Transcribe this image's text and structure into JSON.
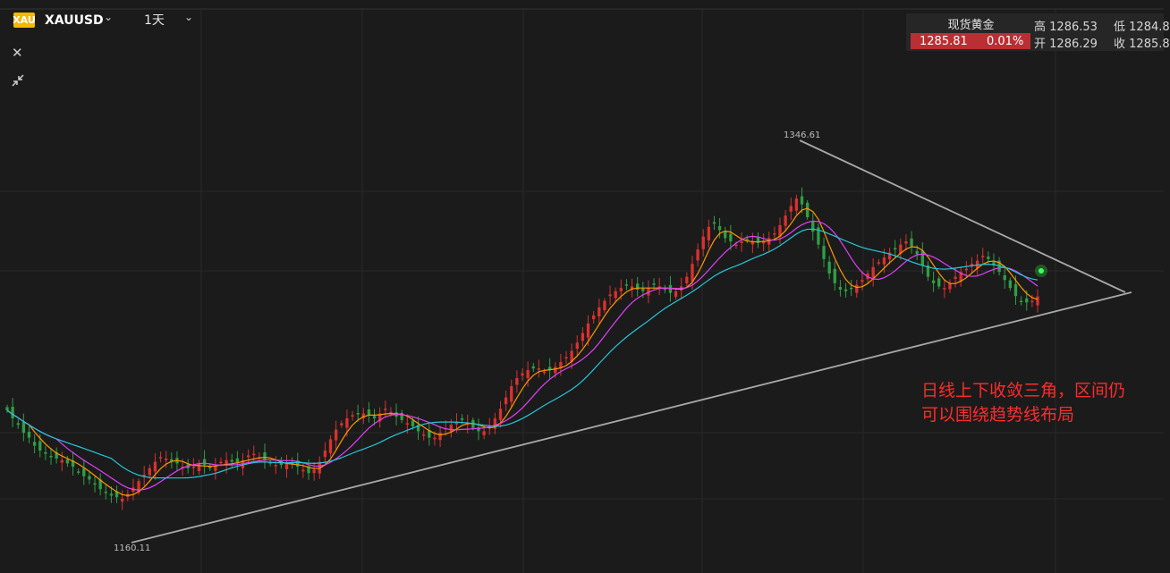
{
  "header": {
    "badge": "XAU",
    "symbol": "XAUUSD",
    "symbol_caret": "⌄",
    "period": "1天",
    "period_caret": "⌄",
    "close_icon": "✕"
  },
  "quote": {
    "name": "现货黄金",
    "last": "1285.81",
    "change_pct": "0.01%",
    "high_label": "高",
    "high": "1286.53",
    "low_label": "低",
    "low": "1284.8",
    "open_label": "开",
    "open": "1286.29",
    "close_label": "收",
    "close": "1285.8",
    "change_color": "#b92f33"
  },
  "annotation": {
    "line1": "日线上下收敛三角，区间仍",
    "line2": "可以围绕趋势线布局"
  },
  "colors": {
    "background": "#1b1b1b",
    "up": "#d8322f",
    "down": "#2f9e44",
    "ma_fast": "#ff9800",
    "ma_mid": "#e040fb",
    "ma_slow": "#26c6da",
    "trendline": "#a8a8a8",
    "annotation": "#ff2b2b"
  },
  "chart_data": {
    "type": "candlestick",
    "title": "XAUUSD",
    "ylim": [
      1145,
      1395
    ],
    "grid": true,
    "series_close": [
      1215,
      1210,
      1206,
      1201,
      1198,
      1193,
      1190,
      1188,
      1186,
      1185,
      1184,
      1182,
      1180,
      1177,
      1174,
      1172,
      1169,
      1166,
      1164,
      1162,
      1161,
      1160.11,
      1163,
      1167,
      1171,
      1175,
      1179,
      1183,
      1186,
      1185,
      1183,
      1182,
      1180,
      1179,
      1180,
      1182,
      1181,
      1179,
      1180,
      1183,
      1184,
      1183,
      1182,
      1184,
      1187,
      1188,
      1186,
      1184,
      1182,
      1181,
      1181,
      1182,
      1182,
      1180,
      1178,
      1176,
      1178,
      1183,
      1190,
      1197,
      1203,
      1207,
      1210,
      1212,
      1213,
      1213,
      1212,
      1210,
      1213,
      1216,
      1214,
      1211,
      1209,
      1207,
      1205,
      1202,
      1200,
      1198,
      1198,
      1201,
      1204,
      1206,
      1208,
      1209,
      1207,
      1204,
      1202,
      1202,
      1205,
      1210,
      1216,
      1223,
      1230,
      1235,
      1238,
      1240,
      1241,
      1241,
      1239,
      1240,
      1242,
      1245,
      1248,
      1252,
      1257,
      1263,
      1269,
      1274,
      1279,
      1283,
      1287,
      1289,
      1291,
      1293,
      1292,
      1290,
      1289,
      1291,
      1293,
      1292,
      1290,
      1288,
      1289,
      1292,
      1298,
      1306,
      1315,
      1323,
      1329,
      1331,
      1327,
      1322,
      1320,
      1318,
      1320,
      1321,
      1320,
      1319,
      1320,
      1322,
      1325,
      1330,
      1336,
      1342,
      1346.61,
      1343,
      1335,
      1326,
      1318,
      1309,
      1300,
      1294,
      1290,
      1289,
      1291,
      1293,
      1296,
      1300,
      1304,
      1307,
      1310,
      1313,
      1315,
      1318,
      1320,
      1317,
      1312,
      1305,
      1298,
      1294,
      1292,
      1291,
      1294,
      1298,
      1301,
      1303,
      1306,
      1308,
      1311,
      1309,
      1305,
      1301,
      1296,
      1291,
      1286,
      1283,
      1282,
      1283,
      1285.81
    ],
    "annotations": [
      "1346.61",
      "1160.11"
    ],
    "ma_periods": [
      5,
      10,
      20
    ]
  },
  "labels": {
    "peak": "1346.61",
    "trough": "1160.11"
  }
}
